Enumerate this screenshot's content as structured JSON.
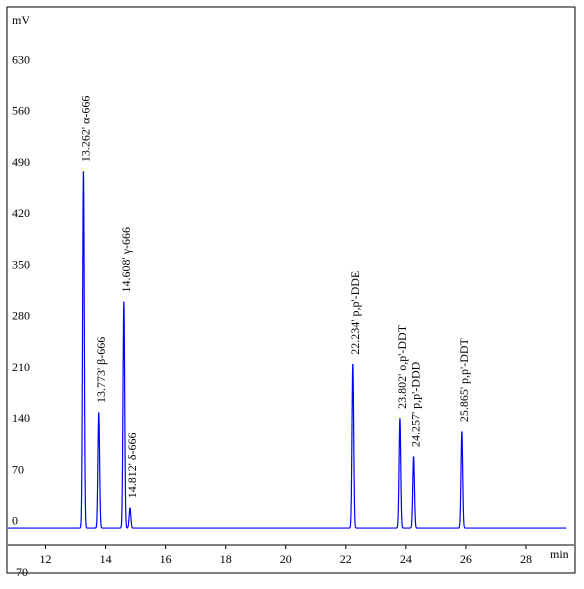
{
  "chart_data": {
    "type": "line",
    "ylabel": "mV",
    "xlabel": "min",
    "xlim": [
      10.75,
      29.6
    ],
    "ylim": [
      -70,
      700
    ],
    "x_ticks": [
      12,
      14,
      16,
      18,
      20,
      22,
      24,
      26,
      28
    ],
    "y_ticks": [
      -70,
      0,
      70,
      140,
      210,
      280,
      350,
      420,
      490,
      560,
      630
    ],
    "grid": false,
    "line_color": "#0000ff",
    "baseline": -10,
    "peaks": [
      {
        "rt": 13.262,
        "height": 476,
        "label": "13.262'",
        "compound": "α-666"
      },
      {
        "rt": 13.773,
        "height": 147,
        "label": "13.773'",
        "compound": "β-666"
      },
      {
        "rt": 14.608,
        "height": 298,
        "label": "14.608'",
        "compound": "γ-666"
      },
      {
        "rt": 14.812,
        "height": 17,
        "label": "14.812'",
        "compound": "δ-666"
      },
      {
        "rt": 22.234,
        "height": 213,
        "label": "22.234'",
        "compound": "p,p'-DDE"
      },
      {
        "rt": 23.802,
        "height": 139,
        "label": "23.802'",
        "compound": "o,p'-DDT"
      },
      {
        "rt": 24.257,
        "height": 87,
        "label": "24.257'",
        "compound": "p,p'-DDD"
      },
      {
        "rt": 25.865,
        "height": 121,
        "label": "25.865'",
        "compound": "p,p'-DDT"
      }
    ]
  }
}
